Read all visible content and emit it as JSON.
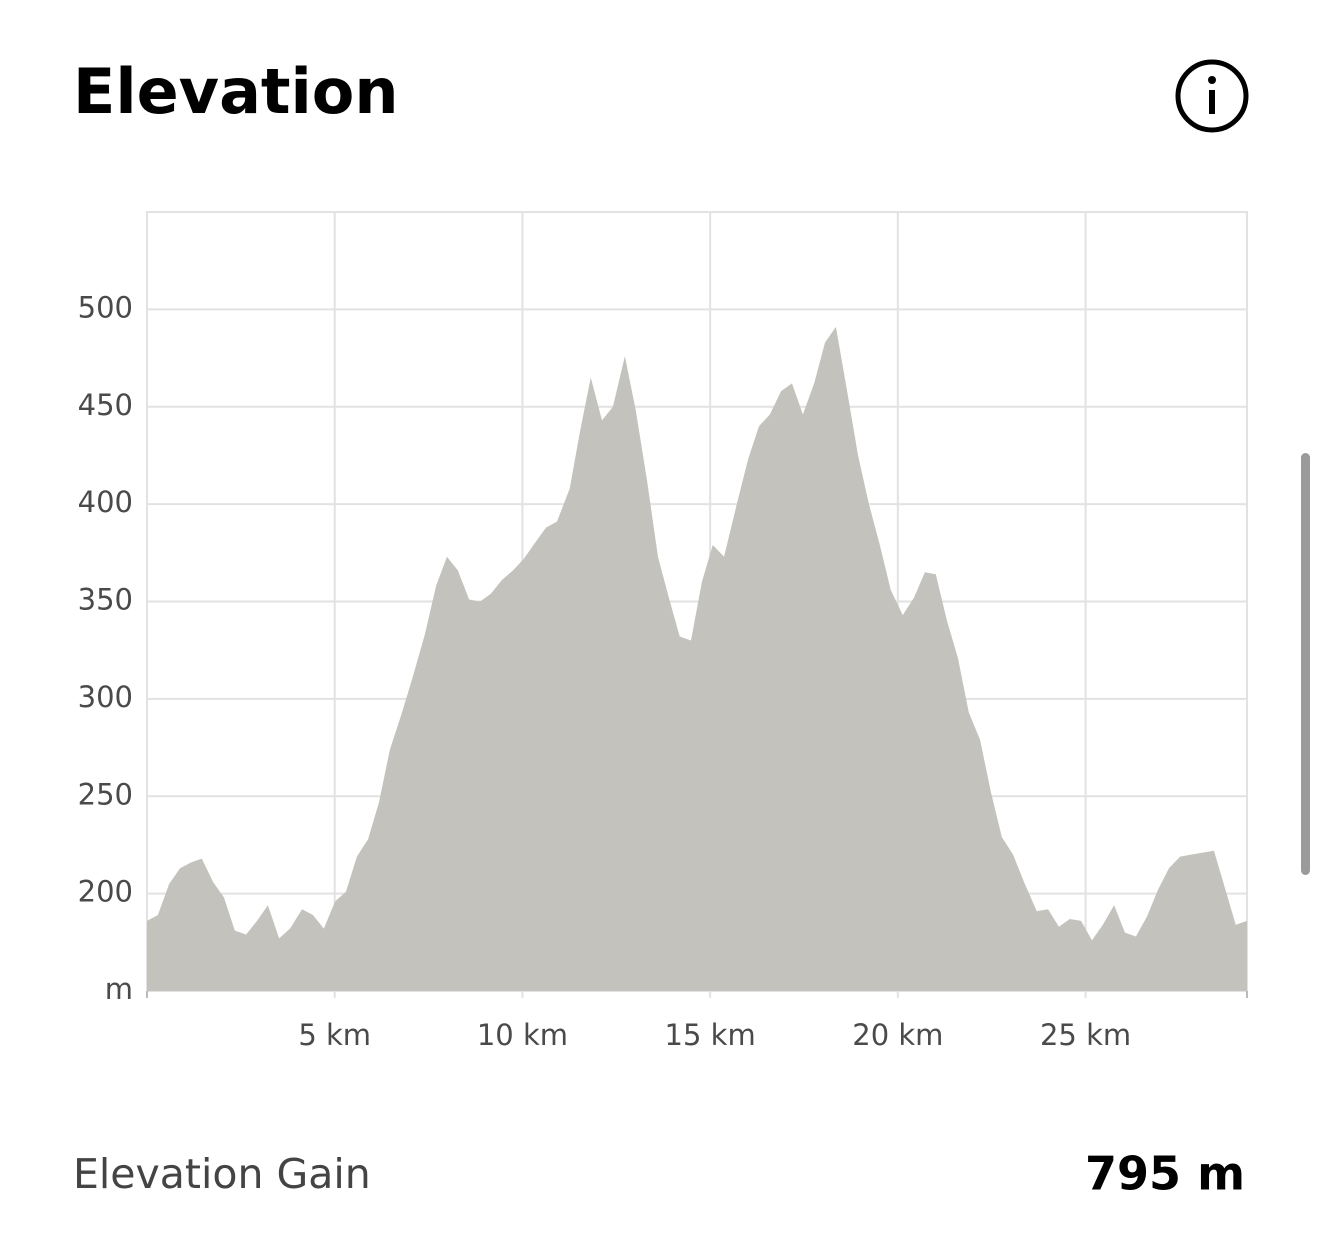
{
  "header": {
    "title": "Elevation"
  },
  "chart_data": {
    "type": "area",
    "color": "#c3c2bd",
    "grid": true,
    "xlim": [
      0,
      29.3
    ],
    "ylim": [
      150,
      550
    ],
    "xticks": [
      {
        "value": 5,
        "label": "5 km"
      },
      {
        "value": 10,
        "label": "10 km"
      },
      {
        "value": 15,
        "label": "15 km"
      },
      {
        "value": 20,
        "label": "20 km"
      },
      {
        "value": 25,
        "label": "25 km"
      }
    ],
    "yticks": [
      {
        "value": 150,
        "label": "m"
      },
      200,
      250,
      300,
      350,
      400,
      450,
      500
    ],
    "x": [
      0,
      0.29,
      0.59,
      0.88,
      1.17,
      1.46,
      1.76,
      2.05,
      2.34,
      2.64,
      2.93,
      3.22,
      3.52,
      3.81,
      4.13,
      4.42,
      4.71,
      5.01,
      5.3,
      5.59,
      5.89,
      6.18,
      6.47,
      6.76,
      7.06,
      7.4,
      7.7,
      7.99,
      8.28,
      8.58,
      8.87,
      9.16,
      9.45,
      9.75,
      10.04,
      10.33,
      10.63,
      10.92,
      11.26,
      11.53,
      11.82,
      12.12,
      12.41,
      12.73,
      13.02,
      13.32,
      13.61,
      13.9,
      14.19,
      14.49,
      14.78,
      15.07,
      15.37,
      15.71,
      16.01,
      16.3,
      16.59,
      16.89,
      17.18,
      17.47,
      17.77,
      18.06,
      18.35,
      18.64,
      18.94,
      19.23,
      19.52,
      19.81,
      20.13,
      20.43,
      20.72,
      21.01,
      21.31,
      21.6,
      21.89,
      22.19,
      22.48,
      22.77,
      23.07,
      23.36,
      23.7,
      24.0,
      24.29,
      24.58,
      24.88,
      25.17,
      25.46,
      25.76,
      26.05,
      26.34,
      26.63,
      26.93,
      27.22,
      27.52,
      27.81,
      28.1,
      28.42,
      28.71,
      29.0,
      29.3
    ],
    "values": [
      186,
      189,
      205,
      213,
      216,
      218,
      206,
      198,
      181,
      179,
      186,
      194,
      177,
      182,
      192,
      189,
      182,
      196,
      201,
      219,
      228,
      247,
      274,
      291,
      310,
      333,
      358,
      373,
      366,
      351,
      350,
      354,
      361,
      366,
      372,
      380,
      388,
      391,
      408,
      437,
      465,
      443,
      450,
      476,
      448,
      412,
      373,
      352,
      332,
      330,
      360,
      379,
      373,
      400,
      423,
      440,
      446,
      458,
      462,
      446,
      462,
      483,
      491,
      459,
      425,
      400,
      379,
      356,
      343,
      352,
      365,
      364,
      340,
      321,
      293,
      279,
      252,
      229,
      220,
      206,
      191,
      192,
      183,
      187,
      186,
      176,
      184,
      194,
      180,
      178,
      188,
      202,
      213,
      219,
      220,
      221,
      222,
      203,
      184,
      186
    ]
  },
  "stats": {
    "label": "Elevation Gain",
    "value": "795 m"
  }
}
